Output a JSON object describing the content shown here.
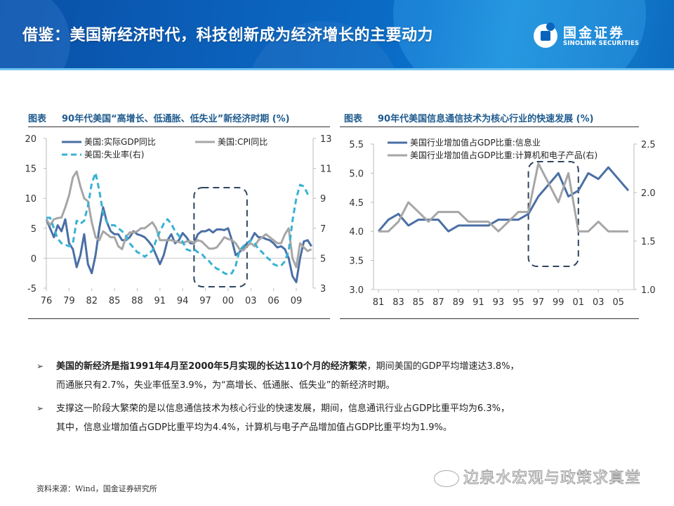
{
  "header": {
    "title": "借鉴：美国新经济时代，科技创新成为经济增长的主要动力",
    "logo_cn": "国金证券",
    "logo_en": "SINOLINK SECURITIES"
  },
  "charts": {
    "left": {
      "label": "图表",
      "title": "90年代美国“高增长、低通胀、低失业”新经济时期 (%)"
    },
    "right": {
      "label": "图表",
      "title": "90年代美国信息通信技术为核心行业的快速发展 (%)"
    }
  },
  "chart_data": [
    {
      "type": "line",
      "title": "90年代美国“高增长、低通胀、低失业”新经济时期 (%)",
      "x_tick_labels": [
        "76",
        "79",
        "82",
        "85",
        "88",
        "91",
        "94",
        "97",
        "00",
        "03",
        "06",
        "09"
      ],
      "y_left": {
        "range": [
          -5,
          20
        ],
        "ticks": [
          "20",
          "15",
          "10",
          "5",
          "0",
          "-5"
        ]
      },
      "y_right": {
        "range": [
          3,
          13
        ],
        "ticks": [
          "13",
          "11",
          "9",
          "7",
          "5",
          "3"
        ]
      },
      "legend": [
        "美国:实际GDP同比",
        "美国:CPI同比",
        "美国:失业率(右)"
      ],
      "legend_position": "top-left",
      "highlight_box": {
        "x_range": [
          1995.5,
          2002.5
        ],
        "note": "dashed rounded box"
      },
      "colors": {
        "gdp": "#4a6fa5",
        "cpi": "#a6a6a6",
        "unemployment": "#38b2d4",
        "box": "#2e4560"
      },
      "x": [
        1976,
        1976.5,
        1977,
        1977.5,
        1978,
        1978.5,
        1979,
        1979.5,
        1980,
        1980.5,
        1981,
        1981.5,
        1982,
        1982.5,
        1983,
        1983.5,
        1984,
        1984.5,
        1985,
        1985.5,
        1986,
        1986.5,
        1987,
        1987.5,
        1988,
        1988.5,
        1989,
        1989.5,
        1990,
        1990.5,
        1991,
        1991.5,
        1992,
        1992.5,
        1993,
        1993.5,
        1994,
        1994.5,
        1995,
        1995.5,
        1996,
        1996.5,
        1997,
        1997.5,
        1998,
        1998.5,
        1999,
        1999.5,
        2000,
        2000.5,
        2001,
        2001.5,
        2002,
        2002.5,
        2003,
        2003.5,
        2004,
        2004.5,
        2005,
        2005.5,
        2006,
        2006.5,
        2007,
        2007.5,
        2008,
        2008.5,
        2009,
        2009.5,
        2010,
        2010.5,
        2011
      ],
      "series": [
        {
          "name": "美国:实际GDP同比",
          "axis": "left",
          "values": [
            6.5,
            5.0,
            3.5,
            5.5,
            4.5,
            6.5,
            2.5,
            1.5,
            -1.5,
            0.5,
            4.0,
            -1.0,
            -2.5,
            0.5,
            5.0,
            8.5,
            6.0,
            4.5,
            4.0,
            4.0,
            3.0,
            3.0,
            3.5,
            4.5,
            4.0,
            3.8,
            3.5,
            2.8,
            2.0,
            0.5,
            -1.0,
            0.5,
            3.0,
            4.0,
            2.5,
            3.0,
            4.2,
            3.5,
            2.5,
            2.5,
            4.0,
            4.5,
            4.5,
            4.8,
            4.3,
            4.8,
            4.8,
            4.7,
            5.0,
            3.0,
            0.5,
            1.0,
            1.8,
            2.5,
            3.0,
            4.2,
            3.5,
            3.5,
            3.2,
            3.0,
            2.5,
            1.8,
            2.0,
            1.5,
            0.0,
            -3.0,
            -4.0,
            0.0,
            2.8,
            3.0,
            2.0
          ]
        },
        {
          "name": "美国:CPI同比",
          "axis": "left",
          "values": [
            6.5,
            5.5,
            6.5,
            6.7,
            6.8,
            8.5,
            10.5,
            13.5,
            14.5,
            12.0,
            10.0,
            9.5,
            6.0,
            3.5,
            3.0,
            4.5,
            4.0,
            3.5,
            3.5,
            2.0,
            1.5,
            3.5,
            4.3,
            4.3,
            4.5,
            5.0,
            5.0,
            5.5,
            6.0,
            5.0,
            3.0,
            3.0,
            3.0,
            3.0,
            2.8,
            2.7,
            2.5,
            2.8,
            2.8,
            2.6,
            3.0,
            2.8,
            2.2,
            1.6,
            1.6,
            1.8,
            2.6,
            3.5,
            3.2,
            3.0,
            2.5,
            1.5,
            1.3,
            2.0,
            2.5,
            2.0,
            3.0,
            3.5,
            4.0,
            3.5,
            3.0,
            2.5,
            2.5,
            4.0,
            5.0,
            0.0,
            -1.5,
            2.5,
            1.8,
            1.2,
            1.5
          ]
        },
        {
          "name": "美国:失业率(右)",
          "axis": "right",
          "values": [
            7.7,
            7.7,
            7.0,
            6.3,
            6.0,
            5.9,
            5.8,
            6.0,
            7.5,
            7.3,
            7.5,
            8.5,
            10.0,
            10.7,
            9.5,
            8.0,
            7.4,
            7.2,
            7.2,
            7.0,
            6.8,
            6.5,
            6.0,
            5.7,
            5.4,
            5.3,
            5.1,
            5.3,
            5.5,
            6.2,
            6.8,
            7.3,
            7.6,
            7.3,
            6.8,
            6.5,
            6.1,
            5.6,
            5.5,
            5.6,
            5.4,
            5.3,
            5.0,
            4.8,
            4.5,
            4.3,
            4.2,
            4.0,
            3.9,
            4.0,
            4.5,
            5.5,
            5.8,
            6.0,
            6.2,
            6.0,
            5.6,
            5.4,
            5.1,
            4.9,
            4.6,
            4.5,
            4.5,
            4.8,
            5.5,
            7.5,
            9.0,
            9.9,
            9.8,
            9.3,
            9.4
          ]
        }
      ]
    },
    {
      "type": "line",
      "title": "90年代美国信息通信技术为核心行业的快速发展 (%)",
      "x_tick_labels": [
        "81",
        "83",
        "85",
        "87",
        "89",
        "91",
        "93",
        "95",
        "97",
        "99",
        "01",
        "03",
        "05"
      ],
      "y_left": {
        "range": [
          3.0,
          5.5
        ],
        "ticks": [
          "5.5",
          "5.0",
          "4.5",
          "4.0",
          "3.5",
          "3.0"
        ]
      },
      "y_right": {
        "range": [
          1.0,
          2.5
        ],
        "ticks": [
          "2.5",
          "2.0",
          "1.5",
          "1.0"
        ]
      },
      "legend": [
        "美国行业增加值占GDP比重:信息业",
        "美国行业增加值占GDP比重:计算机和电子产品(右)"
      ],
      "legend_position": "top-left",
      "highlight_box": {
        "x_range": [
          1996,
          2001
        ],
        "note": "dashed rounded box"
      },
      "colors": {
        "info": "#4a6fa5",
        "computers": "#a6a6a6",
        "box": "#2e4560"
      },
      "x": [
        1981,
        1982,
        1983,
        1984,
        1985,
        1986,
        1987,
        1988,
        1989,
        1990,
        1991,
        1992,
        1993,
        1994,
        1995,
        1996,
        1997,
        1998,
        1999,
        2000,
        2001,
        2002,
        2003,
        2004,
        2005,
        2006
      ],
      "series": [
        {
          "name": "美国行业增加值占GDP比重:信息业",
          "axis": "left",
          "values": [
            4.0,
            4.2,
            4.3,
            4.1,
            4.2,
            4.2,
            4.2,
            4.0,
            4.1,
            4.1,
            4.1,
            4.1,
            4.2,
            4.2,
            4.2,
            4.3,
            4.6,
            4.8,
            5.0,
            4.6,
            4.7,
            5.0,
            4.9,
            5.1,
            4.9,
            4.7
          ]
        },
        {
          "name": "美国行业增加值占GDP比重:计算机和电子产品(右)",
          "axis": "right",
          "values": [
            1.6,
            1.6,
            1.7,
            1.9,
            1.8,
            1.7,
            1.8,
            1.8,
            1.8,
            1.7,
            1.7,
            1.7,
            1.6,
            1.7,
            1.8,
            1.8,
            2.3,
            2.1,
            1.9,
            2.2,
            1.6,
            1.6,
            1.7,
            1.6,
            1.6,
            1.6
          ]
        }
      ]
    }
  ],
  "bullets": [
    {
      "bold": "美国的新经济是指1991年4月至2000年5月实现的长达110个月的经济繁荣",
      "rest": "，期间美国的GDP平均增速达3.8%，",
      "line2": "而通胀只有2.7%，失业率低至3.9%，为“高增长、低通胀、低失业”的新经济时期。"
    },
    {
      "bold": "",
      "rest": "支撑这一阶段大繁荣的是以信息通信技术为核心行业的快速发展，期间，信息通讯行业占GDP比重平均为6.3%，",
      "line2": "其中，信息业增加值占GDP比重平均为4.4%，计算机与电子产品增加值占GDP比重平均为1.9%。"
    }
  ],
  "bullet_glyph": "➢",
  "source": "资料来源：Wind，国金证券研究所",
  "watermark": "边泉水宏观与政策求真堂"
}
